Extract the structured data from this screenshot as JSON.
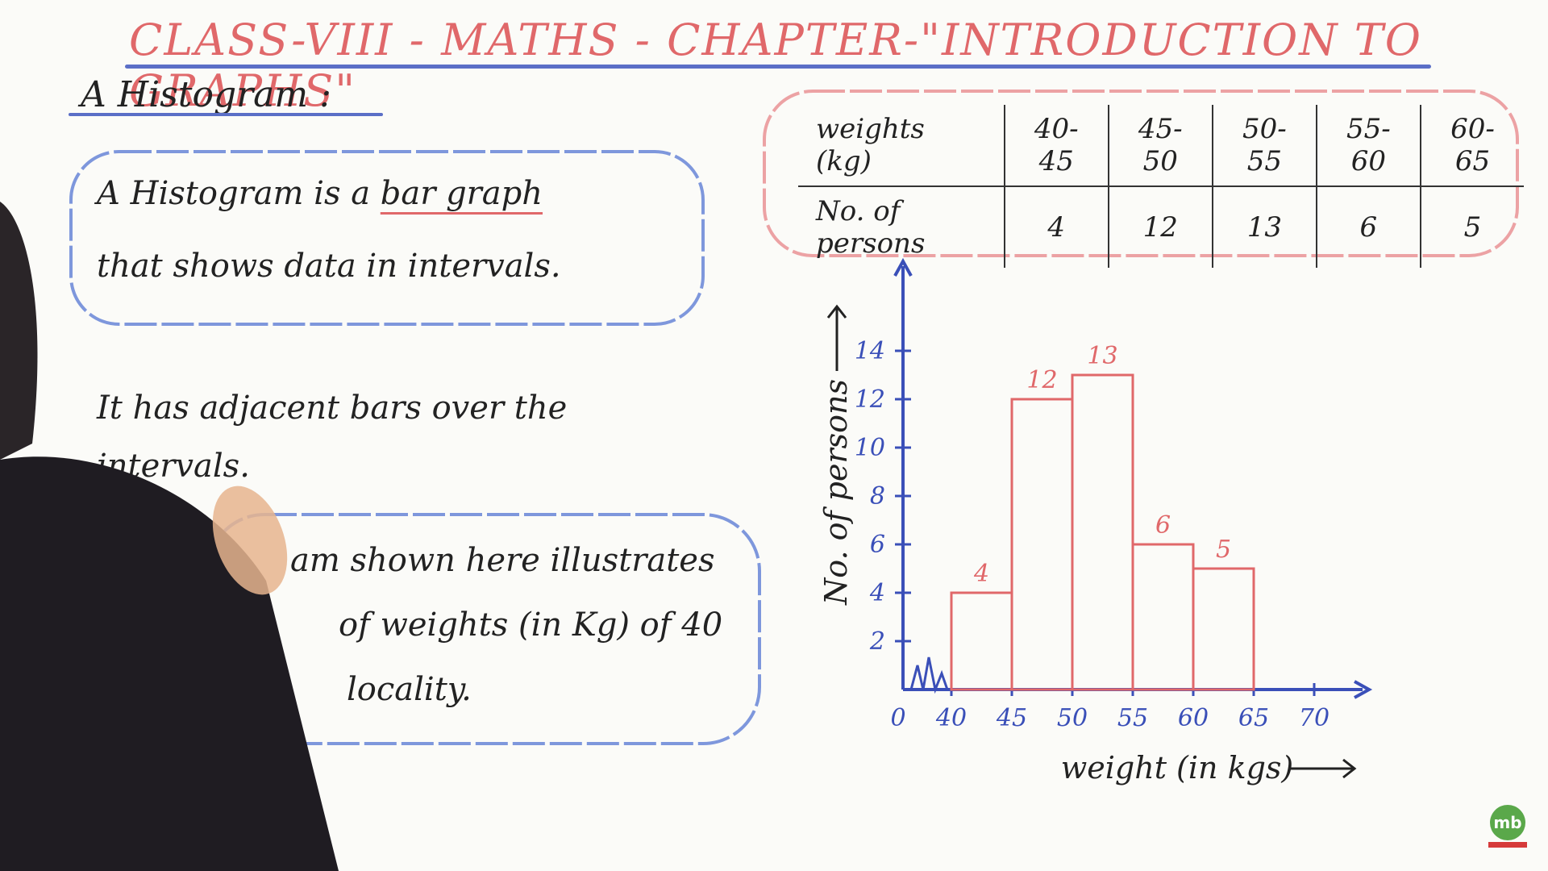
{
  "header": {
    "title": "CLASS-VIII - MATHS - CHAPTER-\"INTRODUCTION TO GRAPHS\"",
    "subtitle": "A Histogram :"
  },
  "definition": {
    "line1_a": "A Histogram is a",
    "line1_b": "bar graph",
    "line2": "that shows data in intervals."
  },
  "adjacent_note": "It has adjacent bars over the intervals.",
  "example": {
    "line1": "am shown here illustrates",
    "line2": "of weights (in Kg) of 40",
    "line3": "locality."
  },
  "table": {
    "header_label": "weights (kg)",
    "row_label": "No. of persons",
    "intervals": [
      "40-45",
      "45-50",
      "50-55",
      "55-60",
      "60-65"
    ],
    "counts": [
      "4",
      "12",
      "13",
      "6",
      "5"
    ]
  },
  "logo": {
    "text": "mb"
  },
  "colors": {
    "red": "#e0686a",
    "blue": "#3a4fb8",
    "ink": "#222222"
  },
  "chart_data": {
    "type": "bar",
    "categories": [
      "40-45",
      "45-50",
      "50-55",
      "55-60",
      "60-65"
    ],
    "bins": [
      [
        40,
        45
      ],
      [
        45,
        50
      ],
      [
        50,
        55
      ],
      [
        55,
        60
      ],
      [
        60,
        65
      ]
    ],
    "values": [
      4,
      12,
      13,
      6,
      5
    ],
    "xlabel": "weight (in kgs)",
    "ylabel": "No. of persons",
    "x_ticks": [
      0,
      40,
      45,
      50,
      55,
      60,
      65,
      70
    ],
    "y_ticks": [
      2,
      4,
      6,
      8,
      10,
      12,
      14
    ],
    "xlim": [
      35,
      70
    ],
    "ylim": [
      0,
      15
    ],
    "grid": false,
    "x_axis_break": true
  }
}
